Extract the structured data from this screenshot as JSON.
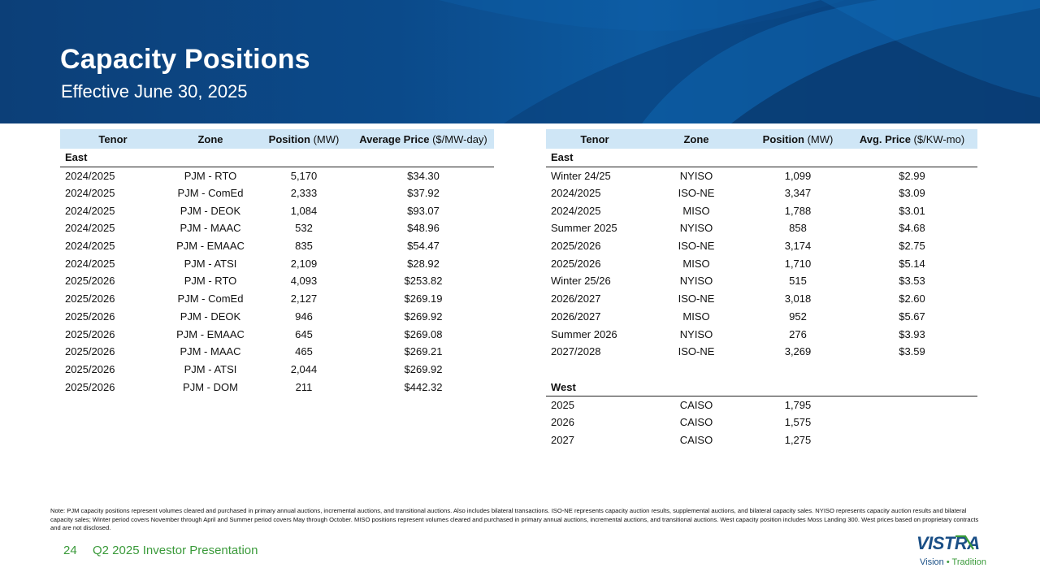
{
  "header": {
    "title": "Capacity Positions",
    "subtitle": "Effective June 30, 2025"
  },
  "left_table": {
    "columns": [
      {
        "label": "Tenor",
        "unit": ""
      },
      {
        "label": "Zone",
        "unit": ""
      },
      {
        "label": "Position",
        "unit": " (MW)"
      },
      {
        "label": "Average Price",
        "unit": " ($/MW-day)"
      }
    ],
    "section": "East",
    "rows": [
      [
        "2024/2025",
        "PJM - RTO",
        "5,170",
        "$34.30"
      ],
      [
        "2024/2025",
        "PJM - ComEd",
        "2,333",
        "$37.92"
      ],
      [
        "2024/2025",
        "PJM - DEOK",
        "1,084",
        "$93.07"
      ],
      [
        "2024/2025",
        "PJM - MAAC",
        "532",
        "$48.96"
      ],
      [
        "2024/2025",
        "PJM - EMAAC",
        "835",
        "$54.47"
      ],
      [
        "2024/2025",
        "PJM - ATSI",
        "2,109",
        "$28.92"
      ],
      [
        "2025/2026",
        "PJM - RTO",
        "4,093",
        "$253.82"
      ],
      [
        "2025/2026",
        "PJM - ComEd",
        "2,127",
        "$269.19"
      ],
      [
        "2025/2026",
        "PJM - DEOK",
        "946",
        "$269.92"
      ],
      [
        "2025/2026",
        "PJM - EMAAC",
        "645",
        "$269.08"
      ],
      [
        "2025/2026",
        "PJM - MAAC",
        "465",
        "$269.21"
      ],
      [
        "2025/2026",
        "PJM - ATSI",
        "2,044",
        "$269.92"
      ],
      [
        "2025/2026",
        "PJM - DOM",
        "211",
        "$442.32"
      ]
    ]
  },
  "right_table": {
    "columns": [
      {
        "label": "Tenor",
        "unit": ""
      },
      {
        "label": "Zone",
        "unit": ""
      },
      {
        "label": "Position",
        "unit": " (MW)"
      },
      {
        "label": "Avg. Price",
        "unit": " ($/KW-mo)"
      }
    ],
    "east_section": "East",
    "east_rows": [
      [
        "Winter 24/25",
        "NYISO",
        "1,099",
        "$2.99"
      ],
      [
        "2024/2025",
        "ISO-NE",
        "3,347",
        "$3.09"
      ],
      [
        "2024/2025",
        "MISO",
        "1,788",
        "$3.01"
      ],
      [
        "Summer 2025",
        "NYISO",
        "858",
        "$4.68"
      ],
      [
        "2025/2026",
        "ISO-NE",
        "3,174",
        "$2.75"
      ],
      [
        "2025/2026",
        "MISO",
        "1,710",
        "$5.14"
      ],
      [
        "Winter 25/26",
        "NYISO",
        "515",
        "$3.53"
      ],
      [
        "2026/2027",
        "ISO-NE",
        "3,018",
        "$2.60"
      ],
      [
        "2026/2027",
        "MISO",
        "952",
        "$5.67"
      ],
      [
        "Summer 2026",
        "NYISO",
        "276",
        "$3.93"
      ],
      [
        "2027/2028",
        "ISO-NE",
        "3,269",
        "$3.59"
      ]
    ],
    "west_section": "West",
    "west_rows": [
      [
        "2025",
        "CAISO",
        "1,795",
        ""
      ],
      [
        "2026",
        "CAISO",
        "1,575",
        ""
      ],
      [
        "2027",
        "CAISO",
        "1,275",
        ""
      ]
    ]
  },
  "note": "Note: PJM capacity positions represent volumes cleared and purchased in primary annual auctions, incremental auctions, and transitional auctions. Also includes bilateral transactions. ISO-NE represents capacity auction results, supplemental auctions, and bilateral capacity sales. NYISO represents capacity auction results and bilateral capacity sales; Winter period covers November through April and Summer period covers May through October. MISO positions represent volumes cleared and purchased in primary annual auctions, incremental auctions, and transitional auctions. West capacity position includes Moss Landing 300. West prices based on proprietary contracts and are not disclosed.",
  "footer": {
    "page_number": "24",
    "presentation": "Q2 2025 Investor Presentation"
  },
  "logo": {
    "wordmark": "VISTRA",
    "tagline_part1": "Vision",
    "separator": "•",
    "tagline_part2": "Tradition"
  },
  "colors": {
    "header_blue": "#0b4a8a",
    "table_header": "#cfe6f6",
    "accent_green": "#3a9a3a",
    "logo_blue": "#1a4f86"
  }
}
